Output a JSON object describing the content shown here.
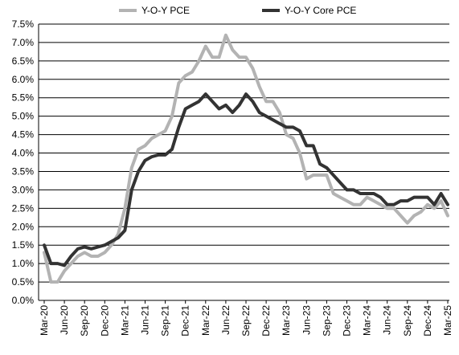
{
  "chart_data": {
    "type": "line",
    "title": "",
    "xlabel": "",
    "ylabel": "",
    "ylim": [
      0,
      7.5
    ],
    "y_tick_step": 0.5,
    "y_tick_format": "percent-1dp",
    "grid": {
      "horizontal": true,
      "vertical": false
    },
    "legend_position": "top-center",
    "x_tick_labels": [
      "Mar-20",
      "Jun-20",
      "Sep-20",
      "Dec-20",
      "Mar-21",
      "Jun-21",
      "Sep-21",
      "Dec-21",
      "Mar-22",
      "Jun-22",
      "Sep-22",
      "Dec-22",
      "Mar-23",
      "Jun-23",
      "Sep-23",
      "Dec-23",
      "Mar-24",
      "Jun-24",
      "Sep-24",
      "Dec-24",
      "Mar-25"
    ],
    "x": [
      "2020-03",
      "2020-04",
      "2020-05",
      "2020-06",
      "2020-07",
      "2020-08",
      "2020-09",
      "2020-10",
      "2020-11",
      "2020-12",
      "2021-01",
      "2021-02",
      "2021-03",
      "2021-04",
      "2021-05",
      "2021-06",
      "2021-07",
      "2021-08",
      "2021-09",
      "2021-10",
      "2021-11",
      "2021-12",
      "2022-01",
      "2022-02",
      "2022-03",
      "2022-04",
      "2022-05",
      "2022-06",
      "2022-07",
      "2022-08",
      "2022-09",
      "2022-10",
      "2022-11",
      "2022-12",
      "2023-01",
      "2023-02",
      "2023-03",
      "2023-04",
      "2023-05",
      "2023-06",
      "2023-07",
      "2023-08",
      "2023-09",
      "2023-10",
      "2023-11",
      "2023-12",
      "2024-01",
      "2024-02",
      "2024-03",
      "2024-04",
      "2024-05",
      "2024-06",
      "2024-07",
      "2024-08",
      "2024-09",
      "2024-10",
      "2024-11",
      "2024-12",
      "2025-01",
      "2025-02",
      "2025-03"
    ],
    "series": [
      {
        "name": "Y-O-Y PCE",
        "color": "#b3b3b3",
        "values": [
          1.3,
          0.5,
          0.5,
          0.8,
          1.0,
          1.2,
          1.3,
          1.2,
          1.2,
          1.3,
          1.5,
          1.8,
          2.5,
          3.6,
          4.1,
          4.2,
          4.4,
          4.5,
          4.6,
          5.0,
          5.9,
          6.1,
          6.2,
          6.5,
          6.9,
          6.6,
          6.6,
          7.2,
          6.8,
          6.6,
          6.6,
          6.3,
          5.8,
          5.4,
          5.4,
          5.1,
          4.5,
          4.4,
          4.0,
          3.3,
          3.4,
          3.4,
          3.4,
          2.9,
          2.8,
          2.7,
          2.6,
          2.6,
          2.8,
          2.7,
          2.6,
          2.5,
          2.5,
          2.3,
          2.1,
          2.3,
          2.4,
          2.6,
          2.5,
          2.7,
          2.3
        ]
      },
      {
        "name": "Y-O-Y Core PCE",
        "color": "#333333",
        "values": [
          1.5,
          1.0,
          1.0,
          0.95,
          1.2,
          1.4,
          1.45,
          1.4,
          1.45,
          1.5,
          1.6,
          1.7,
          1.9,
          3.0,
          3.5,
          3.8,
          3.9,
          3.95,
          3.95,
          4.1,
          4.7,
          5.2,
          5.3,
          5.4,
          5.6,
          5.4,
          5.2,
          5.3,
          5.1,
          5.3,
          5.6,
          5.4,
          5.1,
          5.0,
          4.9,
          4.8,
          4.7,
          4.7,
          4.6,
          4.2,
          4.2,
          3.7,
          3.6,
          3.4,
          3.2,
          3.0,
          3.0,
          2.9,
          2.9,
          2.9,
          2.8,
          2.6,
          2.6,
          2.7,
          2.7,
          2.8,
          2.8,
          2.8,
          2.6,
          2.9,
          2.6
        ]
      }
    ]
  }
}
